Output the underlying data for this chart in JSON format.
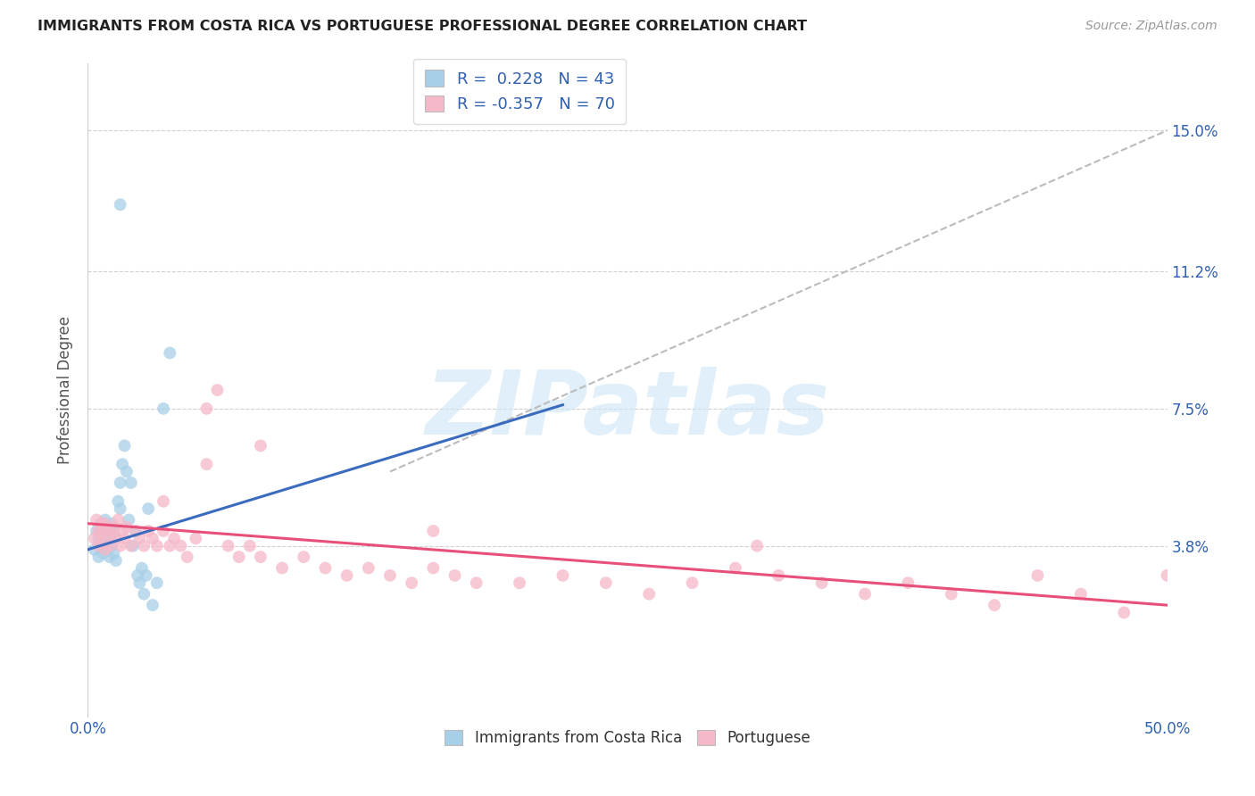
{
  "title": "IMMIGRANTS FROM COSTA RICA VS PORTUGUESE PROFESSIONAL DEGREE CORRELATION CHART",
  "source": "Source: ZipAtlas.com",
  "ylabel": "Professional Degree",
  "yticks": [
    "3.8%",
    "7.5%",
    "11.2%",
    "15.0%"
  ],
  "ytick_vals": [
    0.038,
    0.075,
    0.112,
    0.15
  ],
  "xlim": [
    0.0,
    0.5
  ],
  "ylim": [
    -0.008,
    0.168
  ],
  "color_blue": "#a8cfe8",
  "color_pink": "#f5b8c8",
  "color_line_blue": "#3a6bbf",
  "color_line_pink": "#e8507a",
  "color_dashed": "#bbbbbb",
  "watermark": "ZIPatlas",
  "legend_r1": "R =  0.228   N = 43",
  "legend_r2": "R = -0.357   N = 70",
  "blue_scatter_x": [
    0.003,
    0.004,
    0.005,
    0.005,
    0.006,
    0.006,
    0.007,
    0.007,
    0.007,
    0.008,
    0.008,
    0.008,
    0.009,
    0.009,
    0.01,
    0.01,
    0.011,
    0.011,
    0.012,
    0.012,
    0.013,
    0.013,
    0.014,
    0.015,
    0.015,
    0.016,
    0.017,
    0.018,
    0.019,
    0.02,
    0.021,
    0.022,
    0.023,
    0.024,
    0.025,
    0.026,
    0.027,
    0.028,
    0.03,
    0.032,
    0.035,
    0.038,
    0.015
  ],
  "blue_scatter_y": [
    0.037,
    0.042,
    0.035,
    0.04,
    0.038,
    0.042,
    0.036,
    0.04,
    0.044,
    0.038,
    0.041,
    0.045,
    0.037,
    0.043,
    0.035,
    0.041,
    0.038,
    0.044,
    0.036,
    0.042,
    0.034,
    0.04,
    0.05,
    0.048,
    0.055,
    0.06,
    0.065,
    0.058,
    0.045,
    0.055,
    0.038,
    0.042,
    0.03,
    0.028,
    0.032,
    0.025,
    0.03,
    0.048,
    0.022,
    0.028,
    0.075,
    0.09,
    0.13
  ],
  "pink_scatter_x": [
    0.003,
    0.004,
    0.005,
    0.005,
    0.006,
    0.006,
    0.007,
    0.007,
    0.008,
    0.008,
    0.009,
    0.01,
    0.011,
    0.012,
    0.013,
    0.014,
    0.015,
    0.016,
    0.017,
    0.018,
    0.02,
    0.022,
    0.024,
    0.026,
    0.028,
    0.03,
    0.032,
    0.035,
    0.038,
    0.04,
    0.043,
    0.046,
    0.05,
    0.055,
    0.06,
    0.065,
    0.07,
    0.075,
    0.08,
    0.09,
    0.1,
    0.11,
    0.12,
    0.13,
    0.14,
    0.15,
    0.16,
    0.17,
    0.18,
    0.2,
    0.22,
    0.24,
    0.26,
    0.28,
    0.3,
    0.32,
    0.34,
    0.36,
    0.38,
    0.4,
    0.42,
    0.44,
    0.46,
    0.48,
    0.5,
    0.31,
    0.035,
    0.055,
    0.08,
    0.16
  ],
  "pink_scatter_y": [
    0.04,
    0.045,
    0.038,
    0.042,
    0.041,
    0.044,
    0.039,
    0.043,
    0.037,
    0.044,
    0.042,
    0.038,
    0.041,
    0.043,
    0.04,
    0.045,
    0.038,
    0.042,
    0.04,
    0.043,
    0.038,
    0.042,
    0.04,
    0.038,
    0.042,
    0.04,
    0.038,
    0.042,
    0.038,
    0.04,
    0.038,
    0.035,
    0.04,
    0.075,
    0.08,
    0.038,
    0.035,
    0.038,
    0.035,
    0.032,
    0.035,
    0.032,
    0.03,
    0.032,
    0.03,
    0.028,
    0.032,
    0.03,
    0.028,
    0.028,
    0.03,
    0.028,
    0.025,
    0.028,
    0.032,
    0.03,
    0.028,
    0.025,
    0.028,
    0.025,
    0.022,
    0.03,
    0.025,
    0.02,
    0.03,
    0.038,
    0.05,
    0.06,
    0.065,
    0.042
  ],
  "blue_line_x": [
    0.0,
    0.22
  ],
  "blue_line_y": [
    0.037,
    0.076
  ],
  "pink_line_x": [
    0.0,
    0.5
  ],
  "pink_line_y": [
    0.044,
    0.022
  ],
  "dashed_line_x": [
    0.14,
    0.5
  ],
  "dashed_line_y": [
    0.058,
    0.15
  ]
}
